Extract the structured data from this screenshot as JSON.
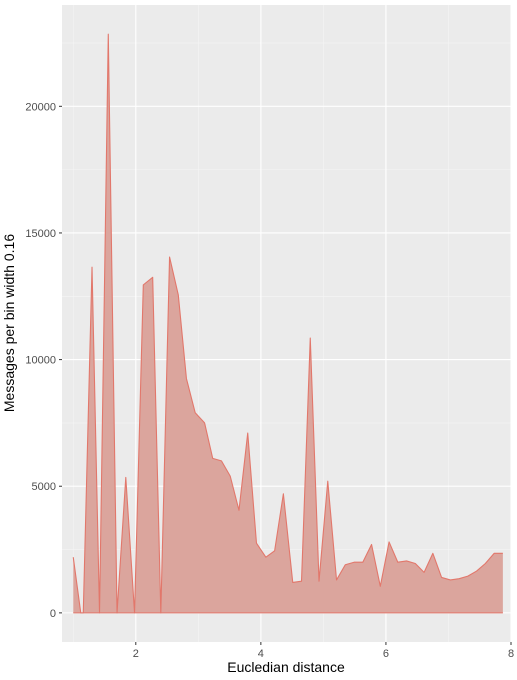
{
  "chart_data": {
    "type": "area",
    "title": "",
    "xlabel": "Eucledian distance",
    "ylabel": "Messages per bin width 0.16",
    "xlim": [
      0.82,
      8.0
    ],
    "ylim": [
      -1150,
      24000
    ],
    "x_ticks": [
      2,
      4,
      6,
      8
    ],
    "x_tick_labels": [
      "2",
      "4",
      "6",
      "8"
    ],
    "y_ticks": [
      0,
      5000,
      10000,
      15000,
      20000
    ],
    "y_tick_labels": [
      "0",
      "5000",
      "10000",
      "15000",
      "20000"
    ],
    "grid": true,
    "legend": "none",
    "colors": {
      "panel": "#ebebeb",
      "grid_major": "#ffffff",
      "grid_minor": "#f5f5f5",
      "fill": "#dba59d",
      "line": "#e2776b"
    },
    "series": [
      {
        "x": [
          1.0,
          1.12,
          1.16,
          1.3,
          1.42,
          1.56,
          1.7,
          1.84,
          1.98,
          2.12,
          2.27,
          2.4,
          2.54,
          2.68,
          2.81,
          2.95,
          3.1,
          3.23,
          3.37,
          3.51,
          3.65,
          3.79,
          3.93,
          4.08,
          4.22,
          4.36,
          4.51,
          4.65,
          4.79,
          4.93,
          5.07,
          5.21,
          5.35,
          5.49,
          5.63,
          5.77,
          5.91,
          6.05,
          6.19,
          6.33,
          6.47,
          6.61,
          6.75,
          6.89,
          7.03,
          7.17,
          7.31,
          7.45,
          7.59,
          7.73,
          7.87
        ],
        "y": [
          2200,
          0,
          0,
          13650,
          0,
          22850,
          0,
          5350,
          0,
          12950,
          13250,
          0,
          14050,
          12550,
          9250,
          7900,
          7500,
          6100,
          6000,
          5400,
          4050,
          7100,
          2750,
          2200,
          2450,
          4700,
          1200,
          1250,
          10850,
          1250,
          5200,
          1300,
          1900,
          2000,
          2000,
          2700,
          1050,
          2800,
          2000,
          2050,
          1950,
          1600,
          2350,
          1400,
          1300,
          1350,
          1450,
          1650,
          1950,
          2350,
          2350
        ]
      }
    ]
  }
}
